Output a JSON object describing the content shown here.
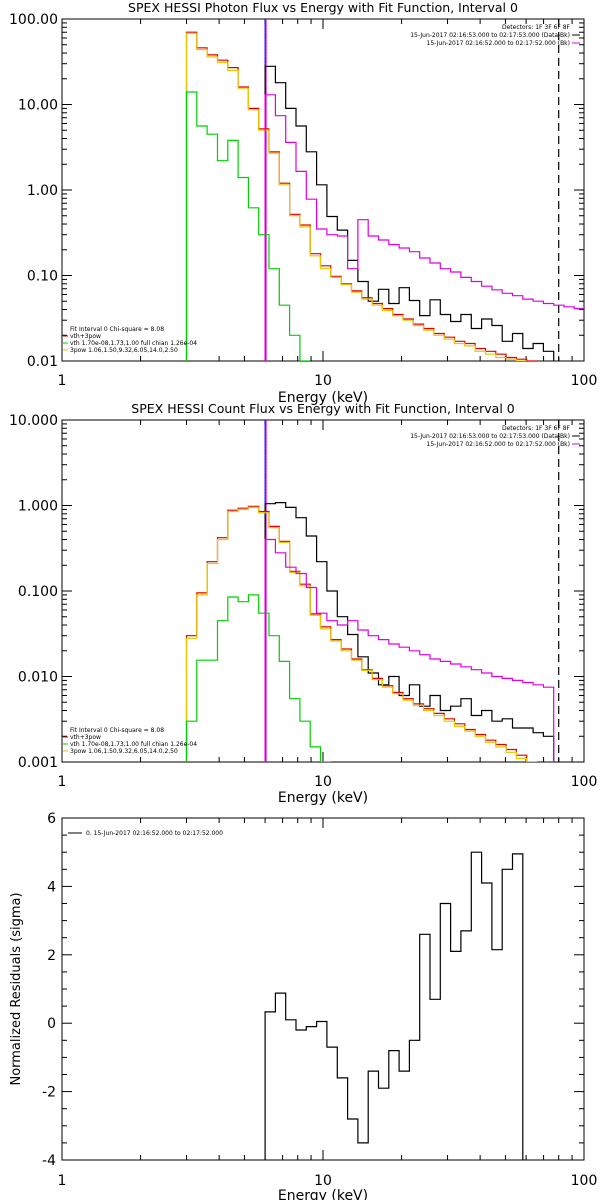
{
  "colors": {
    "black": "#000000",
    "red": "#e00000",
    "green": "#00d000",
    "yellow": "#e6c800",
    "magenta": "#e000e0",
    "blue": "#0000ff"
  },
  "chart_data": [
    {
      "type": "line",
      "title": "SPEX HESSI Photon Flux vs Energy with Fit Function, Interval 0",
      "xlabel": "Energy (keV)",
      "ylabel": "",
      "xscale": "log",
      "yscale": "log",
      "xlim": [
        1,
        100
      ],
      "ylim": [
        0.01,
        100
      ],
      "x_ticks": [
        "1",
        "10",
        "100"
      ],
      "y_ticks": [
        "0.01",
        "0.10",
        "1.00",
        "10.00",
        "100.00"
      ],
      "info_lines": [
        "Detectors: 1F 3F 6F 8F",
        "15-Jun-2017 02:16:53.000 to 02:17:53.000 (Data-Bk)",
        "15-Jun-2017 02:16:52.000 to 02:17:52.000 (Bk)"
      ],
      "legend": [
        "Fit Interval 0   Chi-square = 8.08",
        "vth+3pow",
        "vth 1.70e-08,1.73,1.00   full chian 1.26e-04",
        "3pow 1.06,1.50,9.32,6.05,14.0,2.50"
      ],
      "vlines": [
        {
          "x": 6.0,
          "style": "dotted",
          "color": "black"
        },
        {
          "x": 6.0,
          "style": "solid",
          "color": "blue"
        },
        {
          "x": 6.0,
          "style": "solid",
          "color": "magenta"
        },
        {
          "x": 80.0,
          "style": "dashed",
          "color": "black"
        }
      ],
      "series": [
        {
          "color": "black",
          "start": 6.0,
          "values": [
            28,
            18,
            9,
            5.6,
            2.8,
            1.15,
            0.49,
            0.34,
            0.15,
            0.085,
            0.05,
            0.069,
            0.047,
            0.072,
            0.051,
            0.034,
            0.052,
            0.035,
            0.029,
            0.035,
            0.024,
            0.031,
            0.026,
            0.017,
            0.021,
            0.014,
            0.016,
            0.013
          ]
        },
        {
          "color": "red",
          "start": 3.0,
          "values": [
            70,
            46,
            38,
            33,
            27,
            16,
            9,
            5.2,
            2.8,
            1.2,
            0.52,
            0.39,
            0.18,
            0.13,
            0.098,
            0.08,
            0.066,
            0.055,
            0.047,
            0.041,
            0.035,
            0.031,
            0.027,
            0.024,
            0.021,
            0.019,
            0.017,
            0.016,
            0.014,
            0.013,
            0.012,
            0.011,
            0.0105,
            0.01
          ]
        },
        {
          "color": "yellow",
          "start": 3.0,
          "values": [
            68,
            44,
            36,
            31,
            25,
            15.5,
            8.7,
            5.0,
            2.7,
            1.15,
            0.5,
            0.37,
            0.17,
            0.12,
            0.095,
            0.078,
            0.064,
            0.053,
            0.045,
            0.039,
            0.034,
            0.03,
            0.026,
            0.023,
            0.02,
            0.018,
            0.016,
            0.015,
            0.013,
            0.012,
            0.011,
            0.0105,
            0.01
          ]
        },
        {
          "color": "green",
          "start": 3.0,
          "values": [
            14,
            5.6,
            4.5,
            2.2,
            3.8,
            1.4,
            0.62,
            0.3,
            0.12,
            0.045,
            0.02,
            0.01
          ]
        },
        {
          "color": "magenta",
          "start": 6.0,
          "values": [
            13,
            7.4,
            3.6,
            1.65,
            0.78,
            0.35,
            0.3,
            0.29,
            0.12,
            0.45,
            0.29,
            0.26,
            0.23,
            0.21,
            0.19,
            0.16,
            0.14,
            0.12,
            0.11,
            0.095,
            0.085,
            0.075,
            0.068,
            0.062,
            0.058,
            0.053,
            0.05,
            0.047,
            0.045,
            0.043,
            0.041,
            0.039,
            0.037,
            0.035
          ]
        }
      ]
    },
    {
      "type": "line",
      "title": "SPEX HESSI Count Flux vs Energy with Fit Function, Interval 0",
      "xlabel": "Energy (keV)",
      "ylabel": "",
      "xscale": "log",
      "yscale": "log",
      "xlim": [
        1,
        100
      ],
      "ylim": [
        0.001,
        10
      ],
      "x_ticks": [
        "1",
        "10",
        "100"
      ],
      "y_ticks": [
        "0.001",
        "0.010",
        "0.100",
        "1.000",
        "10.000"
      ],
      "info_lines": [
        "Detectors: 1F 3F 6F 8F",
        "15-Jun-2017 02:16:53.000 to 02:17:53.000 (Data-Bk)",
        "15-Jun-2017 02:16:52.000 to 02:17:52.000 (Bk)"
      ],
      "legend": [
        "Fit Interval 0   Chi-square = 8.08",
        "vth+3pow",
        "vth 1.70e-08,1.73,1.00   full chian 1.26e-04",
        "3pow 1.06,1.50,9.32,6.05,14.0,2.50"
      ],
      "vlines": [
        {
          "x": 6.0,
          "style": "dotted",
          "color": "black"
        },
        {
          "x": 6.0,
          "style": "solid",
          "color": "blue"
        },
        {
          "x": 6.0,
          "style": "solid",
          "color": "magenta"
        },
        {
          "x": 80.0,
          "style": "dashed",
          "color": "black"
        }
      ],
      "series": [
        {
          "color": "black",
          "start": 6.0,
          "values": [
            1.05,
            1.08,
            0.95,
            0.72,
            0.44,
            0.22,
            0.1,
            0.05,
            0.031,
            0.017,
            0.011,
            0.008,
            0.01,
            0.006,
            0.008,
            0.0045,
            0.006,
            0.004,
            0.0045,
            0.0055,
            0.0035,
            0.004,
            0.003,
            0.0032,
            0.0025,
            0.0025,
            0.0022,
            0.002
          ]
        },
        {
          "color": "red",
          "start": 3.0,
          "values": [
            0.03,
            0.095,
            0.22,
            0.42,
            0.88,
            0.93,
            0.98,
            0.85,
            0.57,
            0.38,
            0.17,
            0.12,
            0.054,
            0.038,
            0.027,
            0.021,
            0.016,
            0.012,
            0.0095,
            0.0078,
            0.0065,
            0.0055,
            0.0048,
            0.0042,
            0.0037,
            0.0032,
            0.0028,
            0.0024,
            0.0021,
            0.0018,
            0.0016,
            0.0014,
            0.0012,
            0.001
          ]
        },
        {
          "color": "yellow",
          "start": 3.0,
          "values": [
            0.028,
            0.09,
            0.21,
            0.4,
            0.85,
            0.9,
            0.95,
            0.82,
            0.55,
            0.37,
            0.165,
            0.115,
            0.052,
            0.036,
            0.026,
            0.02,
            0.0155,
            0.0118,
            0.0092,
            0.0075,
            0.0063,
            0.0053,
            0.0046,
            0.004,
            0.0035,
            0.003,
            0.0026,
            0.0023,
            0.002,
            0.0017,
            0.0015,
            0.0013,
            0.0011,
            0.001
          ]
        },
        {
          "color": "green",
          "start": 3.0,
          "values": [
            0.003,
            0.0155,
            0.0155,
            0.045,
            0.085,
            0.075,
            0.09,
            0.055,
            0.03,
            0.015,
            0.0055,
            0.003,
            0.0015,
            0.001
          ]
        },
        {
          "color": "magenta",
          "start": 6.0,
          "values": [
            0.4,
            0.28,
            0.19,
            0.16,
            0.11,
            0.055,
            0.045,
            0.04,
            0.045,
            0.035,
            0.03,
            0.027,
            0.024,
            0.022,
            0.02,
            0.018,
            0.016,
            0.015,
            0.014,
            0.013,
            0.012,
            0.011,
            0.01,
            0.0095,
            0.009,
            0.0085,
            0.008,
            0.0075
          ]
        }
      ]
    },
    {
      "type": "line",
      "title": "",
      "xlabel": "Energy (keV)",
      "ylabel": "Normalized Residuals (sigma)",
      "xscale": "log",
      "yscale": "linear",
      "xlim": [
        1,
        100
      ],
      "ylim": [
        -4,
        6
      ],
      "x_ticks": [
        "1",
        "10",
        "100"
      ],
      "y_ticks": [
        "-4",
        "-2",
        "0",
        "2",
        "4",
        "6"
      ],
      "legend": [
        "0. 15-Jun-2017 02:16:52.000 to 02:17:52.000"
      ],
      "series": [
        {
          "color": "black",
          "start": 6.0,
          "values": [
            0.33,
            0.88,
            0.1,
            -0.2,
            -0.1,
            0.05,
            -0.7,
            -1.6,
            -2.8,
            -3.5,
            -1.4,
            -1.9,
            -0.8,
            -1.4,
            -0.5,
            2.6,
            0.7,
            3.5,
            2.1,
            2.7,
            5.0,
            4.1,
            2.15,
            4.5,
            4.95
          ]
        }
      ]
    }
  ]
}
